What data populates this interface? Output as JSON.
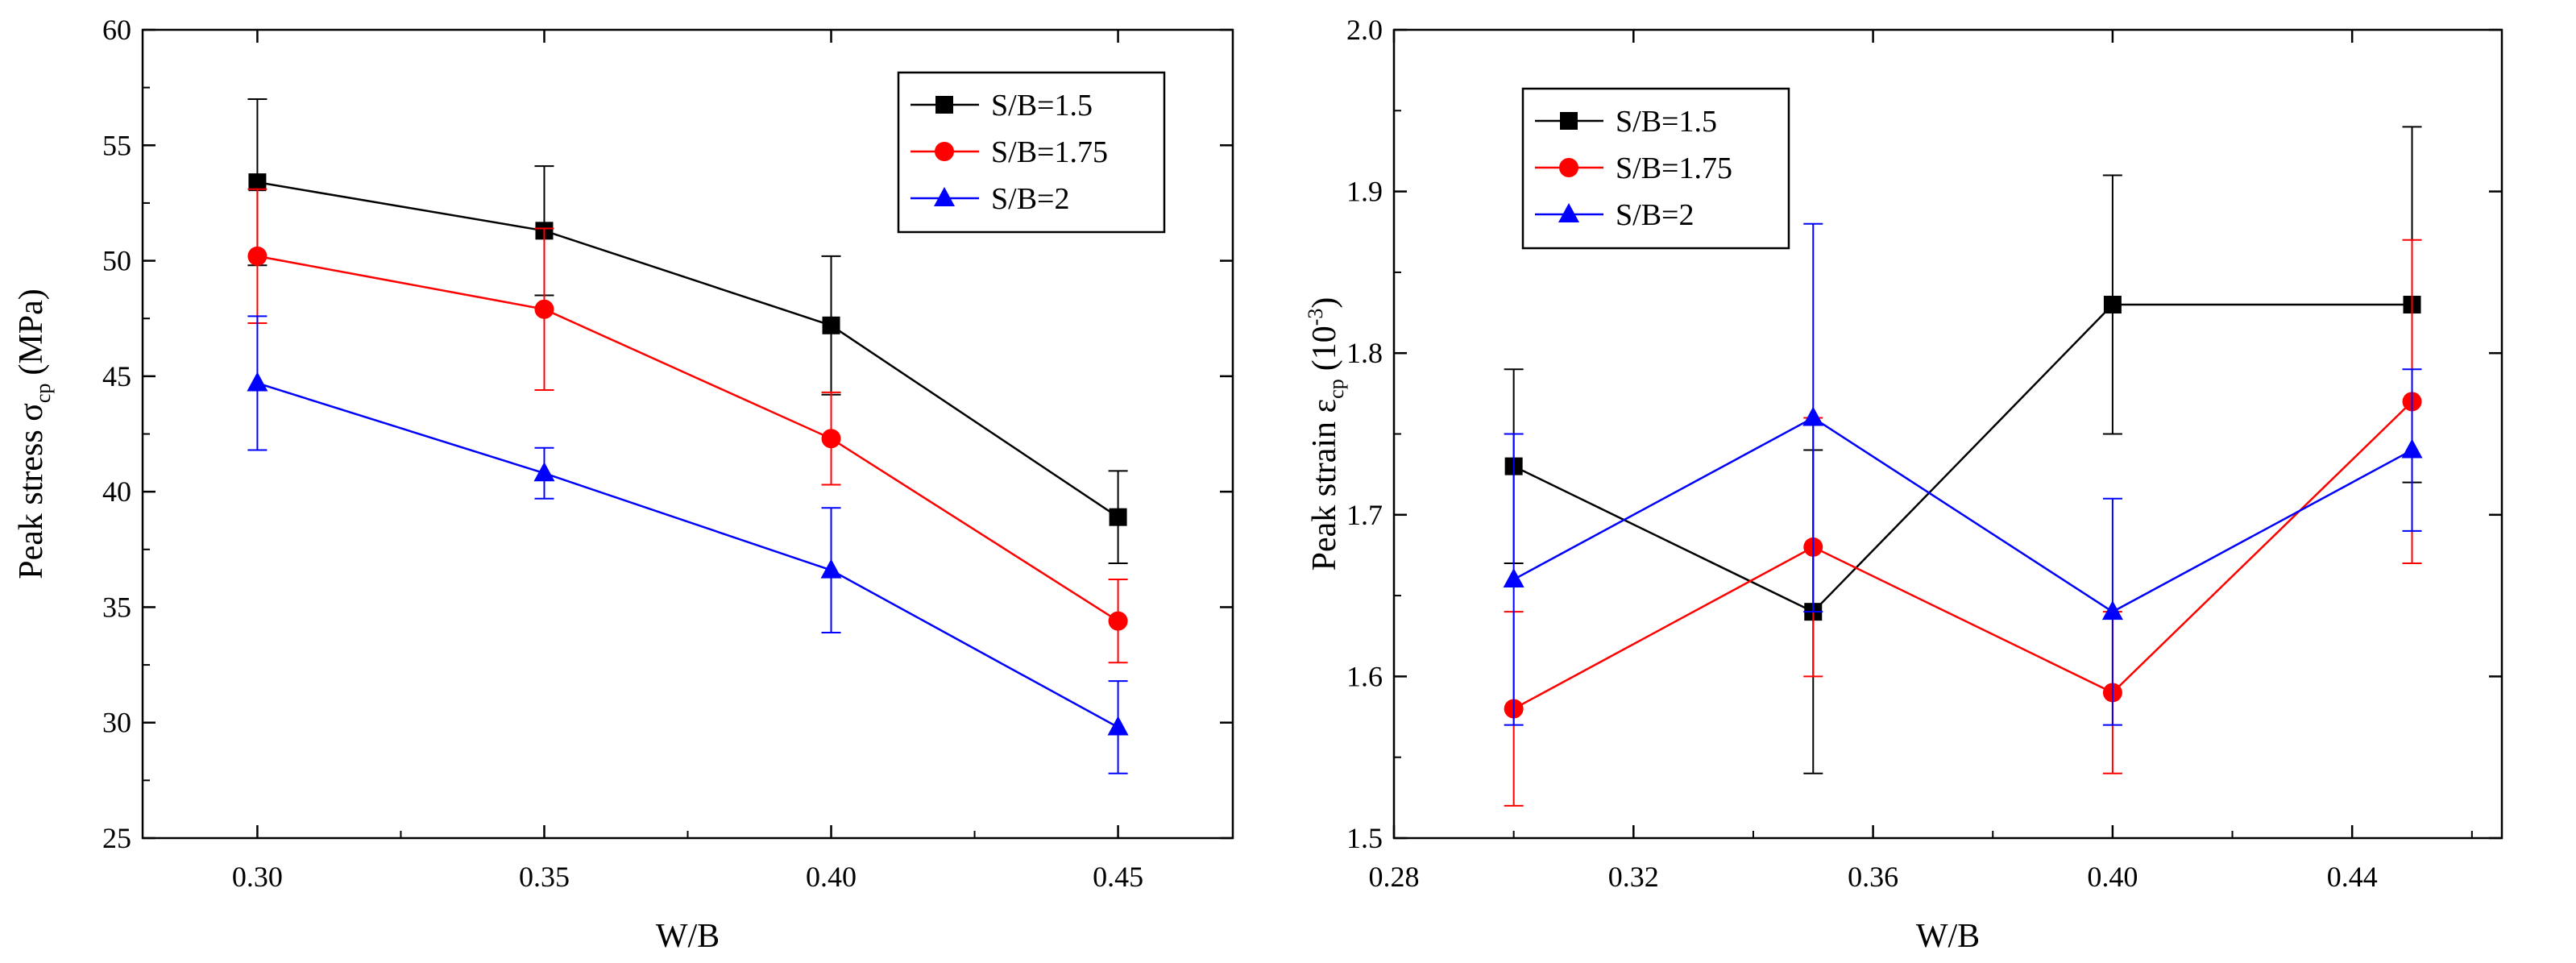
{
  "chart_data": [
    {
      "type": "line",
      "xlabel": "W/B",
      "ylabel_main": "Peak stress σ",
      "ylabel_sub": "cp",
      "ylabel_unit": "(MPa)",
      "xlim": [
        0.28,
        0.47
      ],
      "ylim": [
        25,
        60
      ],
      "x_ticks": [
        "0.30",
        "0.35",
        "0.40",
        "0.45"
      ],
      "x_tick_values": [
        0.3,
        0.35,
        0.4,
        0.45
      ],
      "y_ticks": [
        "25",
        "30",
        "35",
        "40",
        "45",
        "50",
        "55",
        "60"
      ],
      "y_tick_values": [
        25,
        30,
        35,
        40,
        45,
        50,
        55,
        60
      ],
      "legend_position": "top-right",
      "x": [
        0.3,
        0.35,
        0.4,
        0.45
      ],
      "series": [
        {
          "name": "S/B=1.5",
          "color": "#000000",
          "marker": "square",
          "values": [
            53.4,
            51.3,
            47.2,
            38.9
          ],
          "errors": [
            3.6,
            2.8,
            3.0,
            2.0
          ]
        },
        {
          "name": "S/B=1.75",
          "color": "#ff0000",
          "marker": "circle",
          "values": [
            50.2,
            47.9,
            42.3,
            34.4
          ],
          "errors": [
            2.9,
            3.5,
            2.0,
            1.8
          ]
        },
        {
          "name": "S/B=2",
          "color": "#0000ff",
          "marker": "triangle",
          "values": [
            44.7,
            40.8,
            36.6,
            29.8
          ],
          "errors": [
            2.9,
            1.1,
            2.7,
            2.0
          ]
        }
      ]
    },
    {
      "type": "line",
      "xlabel": "W/B",
      "ylabel_main": "Peak strain ε",
      "ylabel_sub": "cp",
      "ylabel_unit": "(10",
      "ylabel_sup": "-3",
      "ylabel_close": ")",
      "xlim": [
        0.28,
        0.465
      ],
      "ylim": [
        1.5,
        2.0
      ],
      "x_ticks": [
        "0.28",
        "0.32",
        "0.36",
        "0.40",
        "0.44"
      ],
      "x_tick_values": [
        0.28,
        0.32,
        0.36,
        0.4,
        0.44
      ],
      "y_ticks": [
        "1.5",
        "1.6",
        "1.7",
        "1.8",
        "1.9",
        "2.0"
      ],
      "y_tick_values": [
        1.5,
        1.6,
        1.7,
        1.8,
        1.9,
        2.0
      ],
      "legend_position": "top-left",
      "x": [
        0.3,
        0.35,
        0.4,
        0.45
      ],
      "series": [
        {
          "name": "S/B=1.5",
          "color": "#000000",
          "marker": "square",
          "values": [
            1.73,
            1.64,
            1.83,
            1.83
          ],
          "errors": [
            0.06,
            0.1,
            0.08,
            0.11
          ]
        },
        {
          "name": "S/B=1.75",
          "color": "#ff0000",
          "marker": "circle",
          "values": [
            1.58,
            1.68,
            1.59,
            1.77
          ],
          "errors": [
            0.06,
            0.08,
            0.05,
            0.1
          ]
        },
        {
          "name": "S/B=2",
          "color": "#0000ff",
          "marker": "triangle",
          "values": [
            1.66,
            1.76,
            1.64,
            1.74
          ],
          "errors": [
            0.09,
            0.12,
            0.07,
            0.05
          ]
        }
      ]
    }
  ]
}
